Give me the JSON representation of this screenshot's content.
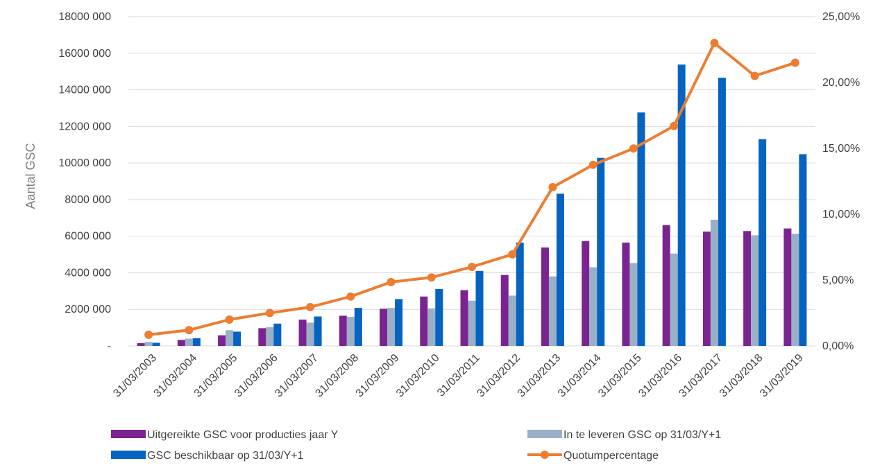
{
  "chart_data": {
    "type": "bar",
    "categories": [
      "31/03/2003",
      "31/03/2004",
      "31/03/2005",
      "31/03/2006",
      "31/03/2007",
      "31/03/2008",
      "31/03/2009",
      "31/03/2010",
      "31/03/2011",
      "31/03/2012",
      "31/03/2013",
      "31/03/2014",
      "31/03/2015",
      "31/03/2016",
      "31/03/2017",
      "31/03/2018",
      "31/03/2019"
    ],
    "series": [
      {
        "name": "Uitgereikte GSC voor producties jaar Y",
        "color": "#7b2491",
        "axis": "left",
        "type": "bar",
        "values": [
          150000,
          330000,
          580000,
          970000,
          1440000,
          1650000,
          2030000,
          2700000,
          3050000,
          3880000,
          5380000,
          5730000,
          5650000,
          6600000,
          6250000,
          6280000,
          6420000
        ]
      },
      {
        "name": "In te leveren GSC op 31/03/Y+1",
        "color": "#9ab0c6",
        "axis": "left",
        "type": "bar",
        "values": [
          220000,
          400000,
          860000,
          1020000,
          1270000,
          1590000,
          2080000,
          2050000,
          2470000,
          2750000,
          3800000,
          4300000,
          4530000,
          5050000,
          6900000,
          6050000,
          6130000
        ]
      },
      {
        "name": "GSC beschikbaar op 31/03/Y+1",
        "color": "#0563c1",
        "axis": "left",
        "type": "bar",
        "values": [
          170000,
          420000,
          780000,
          1220000,
          1610000,
          2080000,
          2560000,
          3110000,
          4100000,
          5650000,
          8320000,
          10280000,
          12760000,
          15380000,
          14660000,
          11300000,
          10480000
        ]
      },
      {
        "name": "Quotumpercentage",
        "color": "#ed7d31",
        "axis": "right",
        "type": "line",
        "values": [
          0.85,
          1.2,
          2.0,
          2.5,
          2.95,
          3.75,
          4.85,
          5.2,
          6.0,
          6.95,
          12.05,
          13.75,
          14.99,
          16.7,
          23.0,
          20.5,
          21.5
        ]
      }
    ],
    "ylabel": "Aantal GSC",
    "y_left": {
      "min": 0,
      "max": 18000000,
      "ticks": [
        "-",
        "2000 000",
        "4000 000",
        "6000 000",
        "8000 000",
        "10000 000",
        "12000 000",
        "14000 000",
        "16000 000",
        "18000 000"
      ]
    },
    "y_right": {
      "min": 0,
      "max": 25,
      "ticks": [
        "0,00%",
        "5,00%",
        "10,00%",
        "15,00%",
        "20,00%",
        "25,00%"
      ]
    },
    "grid": "horizontal",
    "legend_position": "bottom"
  }
}
